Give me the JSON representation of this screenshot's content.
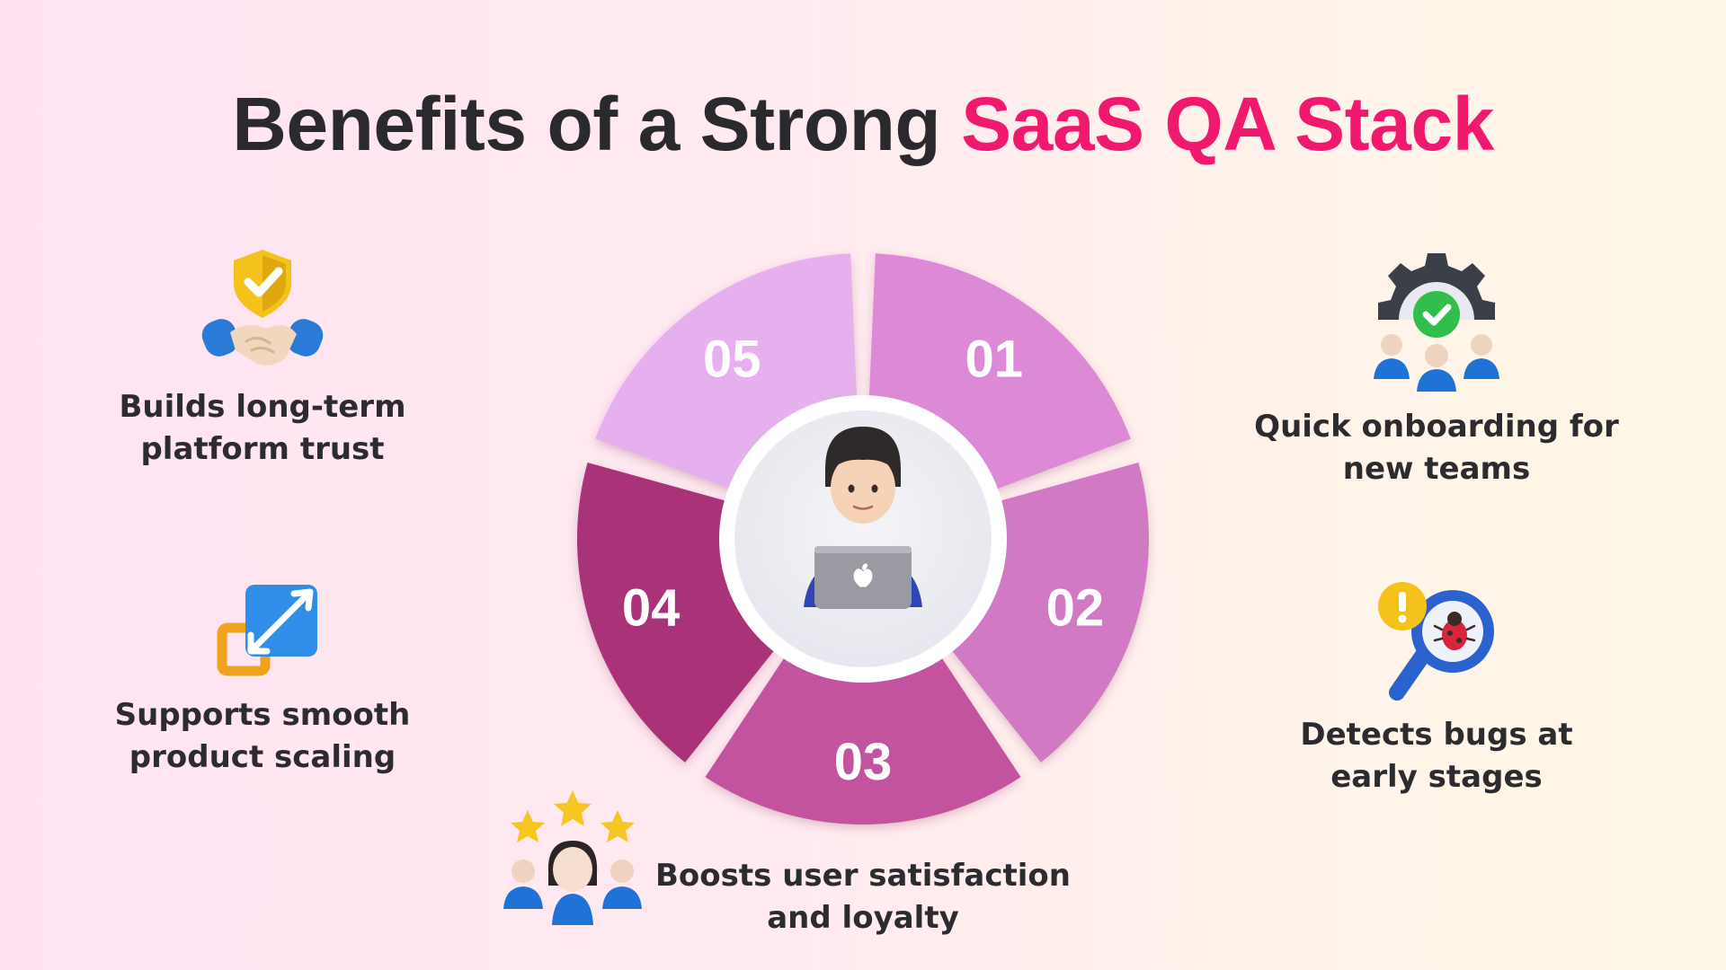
{
  "title": {
    "main": "Benefits of a Strong ",
    "accent": "SaaS QA Stack"
  },
  "center_icon": "person-with-laptop-icon",
  "benefits": [
    {
      "number": "01",
      "label_line1": "Quick onboarding for",
      "label_line2": "new teams",
      "icon": "gear-team-check-icon"
    },
    {
      "number": "02",
      "label_line1": "Detects bugs at",
      "label_line2": "early stages",
      "icon": "magnifier-bug-icon"
    },
    {
      "number": "03",
      "label_line1": "Boosts user satisfaction",
      "label_line2": "and loyalty",
      "icon": "users-stars-icon"
    },
    {
      "number": "04",
      "label_line1": "Supports smooth",
      "label_line2": "product scaling",
      "icon": "resize-arrows-icon"
    },
    {
      "number": "05",
      "label_line1": "Builds long-term",
      "label_line2": "platform trust",
      "icon": "handshake-shield-icon"
    }
  ],
  "colors": {
    "accent": "#f0196e",
    "segment_01": "#dc8ad6",
    "segment_02": "#d279c4",
    "segment_03": "#c3529e",
    "segment_04": "#a93279",
    "segment_05": "#e6b0ee"
  }
}
